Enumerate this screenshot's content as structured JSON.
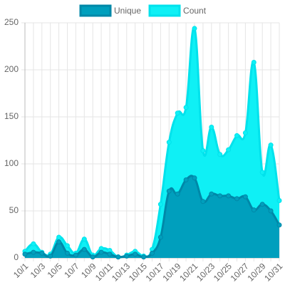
{
  "chart_data": {
    "type": "area",
    "categories": [
      "10/1",
      null,
      "10/3",
      null,
      "10/5",
      null,
      "10/7",
      null,
      "10/9",
      null,
      "10/11",
      null,
      "10/13",
      null,
      "10/15",
      null,
      "10/17",
      null,
      "10/19",
      null,
      "10/21",
      null,
      "10/23",
      null,
      "10/25",
      null,
      "10/27",
      null,
      "10/29",
      null,
      "10/31"
    ],
    "series": [
      {
        "name": "Unique",
        "color": "#009fbd",
        "border": "#0088a8",
        "values": [
          4,
          6,
          5,
          2,
          17,
          5,
          3,
          9,
          1,
          6,
          4,
          1,
          2,
          4,
          1,
          5,
          22,
          71,
          68,
          83,
          85,
          60,
          68,
          66,
          66,
          63,
          65,
          51,
          57,
          50,
          35
        ]
      },
      {
        "name": "Count",
        "color": "#0ff0f5",
        "border": "#00e2ec",
        "values": [
          7,
          15,
          6,
          4,
          22,
          13,
          5,
          20,
          3,
          10,
          8,
          1,
          3,
          7,
          2,
          9,
          57,
          123,
          154,
          160,
          244,
          114,
          139,
          110,
          115,
          130,
          133,
          208,
          91,
          120,
          61
        ]
      }
    ],
    "ylim": [
      0,
      250
    ],
    "yticks": [
      0,
      50,
      100,
      150,
      200,
      250
    ],
    "grid": true,
    "legend": "top"
  }
}
